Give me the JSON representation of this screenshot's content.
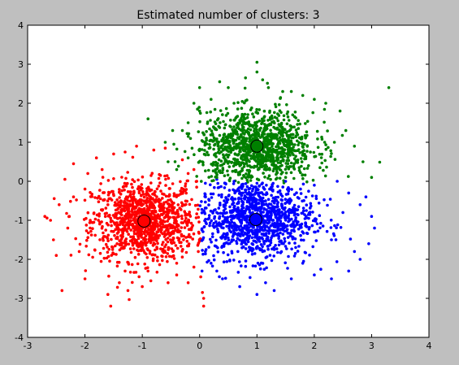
{
  "chart_data": {
    "type": "scatter",
    "title": "Estimated number of clusters: 3",
    "xlabel": "",
    "ylabel": "",
    "xlim": [
      -3,
      4
    ],
    "ylim": [
      -4,
      4
    ],
    "xticks": [
      -3,
      -2,
      -1,
      0,
      1,
      2,
      3,
      4
    ],
    "yticks": [
      -4,
      -3,
      -2,
      -1,
      0,
      1,
      2,
      3,
      4
    ],
    "grid": false,
    "series": [
      {
        "color": "#ff0000",
        "center": [
          -0.97,
          -1.02
        ],
        "points": [
          [
            -2.7,
            -0.9
          ],
          [
            -2.55,
            -1.5
          ],
          [
            -2.5,
            -1.9
          ],
          [
            -2.4,
            -2.8
          ],
          [
            -2.35,
            0.05
          ],
          [
            -2.2,
            0.45
          ],
          [
            -2.2,
            -0.4
          ],
          [
            -2.3,
            -1.2
          ],
          [
            -2.1,
            -1.8
          ],
          [
            -2.0,
            -2.5
          ],
          [
            -1.95,
            0.2
          ],
          [
            -1.8,
            0.6
          ],
          [
            -1.6,
            -2.9
          ],
          [
            -1.55,
            -3.2
          ],
          [
            -1.5,
            0.7
          ],
          [
            -1.4,
            -2.6
          ],
          [
            -1.3,
            0.75
          ],
          [
            -1.25,
            -2.8
          ],
          [
            -1.1,
            0.9
          ],
          [
            -1.0,
            -2.7
          ],
          [
            -0.85,
            -2.55
          ],
          [
            -0.8,
            0.8
          ],
          [
            -0.6,
            0.85
          ],
          [
            -0.55,
            -2.6
          ],
          [
            -0.4,
            -2.4
          ],
          [
            -0.3,
            0.55
          ],
          [
            -0.2,
            -2.6
          ],
          [
            -0.1,
            0.3
          ],
          [
            0.02,
            -2.45
          ],
          [
            0.07,
            -3.0
          ],
          [
            0.07,
            -3.2
          ],
          [
            0.05,
            -2.85
          ],
          [
            -2.6,
            -1.0
          ],
          [
            -2.45,
            -0.6
          ],
          [
            -2.0,
            -0.2
          ],
          [
            -1.7,
            0.3
          ],
          [
            -1.3,
            -2.3
          ],
          [
            -0.9,
            -2.3
          ],
          [
            -0.4,
            -2.1
          ],
          [
            -0.1,
            -2.2
          ],
          [
            -0.05,
            0.0
          ],
          [
            -0.2,
            0.2
          ]
        ]
      },
      {
        "color": "#0000ff",
        "center": [
          0.98,
          -0.98
        ],
        "points": [
          [
            0.1,
            -0.05
          ],
          [
            0.3,
            0.05
          ],
          [
            0.6,
            0.0
          ],
          [
            1.0,
            -0.05
          ],
          [
            1.5,
            0.0
          ],
          [
            2.0,
            -0.1
          ],
          [
            2.4,
            0.0
          ],
          [
            2.6,
            -0.3
          ],
          [
            2.8,
            -0.6
          ],
          [
            3.0,
            -0.9
          ],
          [
            3.05,
            -1.2
          ],
          [
            2.95,
            -1.6
          ],
          [
            2.8,
            -2.0
          ],
          [
            2.6,
            -2.3
          ],
          [
            2.3,
            -2.5
          ],
          [
            2.0,
            -2.4
          ],
          [
            1.6,
            -2.5
          ],
          [
            1.3,
            -2.8
          ],
          [
            1.0,
            -2.9
          ],
          [
            0.7,
            -2.7
          ],
          [
            0.4,
            -2.5
          ],
          [
            0.2,
            -2.1
          ],
          [
            0.1,
            -1.8
          ],
          [
            2.3,
            -1.5
          ],
          [
            2.5,
            -0.8
          ],
          [
            1.8,
            -2.1
          ],
          [
            0.3,
            -2.3
          ],
          [
            2.7,
            -1.8
          ],
          [
            2.9,
            -0.4
          ],
          [
            1.15,
            -2.6
          ]
        ]
      },
      {
        "color": "#008000",
        "center": [
          1.0,
          0.9
        ],
        "points": [
          [
            -0.9,
            1.6
          ],
          [
            -0.6,
            1.0
          ],
          [
            -0.55,
            0.5
          ],
          [
            -0.45,
            0.95
          ],
          [
            -0.4,
            0.3
          ],
          [
            -0.3,
            1.3
          ],
          [
            -0.2,
            1.5
          ],
          [
            -0.1,
            2.0
          ],
          [
            0.0,
            1.8
          ],
          [
            0.0,
            2.4
          ],
          [
            0.05,
            0.5
          ],
          [
            0.2,
            2.1
          ],
          [
            0.35,
            2.55
          ],
          [
            0.5,
            2.4
          ],
          [
            0.6,
            2.0
          ],
          [
            0.8,
            2.65
          ],
          [
            1.0,
            3.05
          ],
          [
            1.0,
            2.8
          ],
          [
            1.1,
            2.6
          ],
          [
            1.2,
            2.4
          ],
          [
            1.45,
            2.3
          ],
          [
            1.6,
            2.3
          ],
          [
            1.8,
            2.2
          ],
          [
            2.0,
            2.1
          ],
          [
            2.2,
            2.0
          ],
          [
            2.45,
            1.8
          ],
          [
            2.55,
            1.3
          ],
          [
            2.7,
            0.9
          ],
          [
            2.85,
            0.5
          ],
          [
            3.0,
            0.1
          ],
          [
            3.3,
            2.4
          ],
          [
            2.1,
            0.35
          ],
          [
            1.5,
            0.1
          ],
          [
            0.9,
            0.1
          ],
          [
            0.3,
            0.1
          ],
          [
            -0.2,
            0.6
          ],
          [
            2.35,
            1.0
          ],
          [
            1.9,
            0.4
          ],
          [
            0.1,
            1.0
          ]
        ]
      }
    ]
  }
}
